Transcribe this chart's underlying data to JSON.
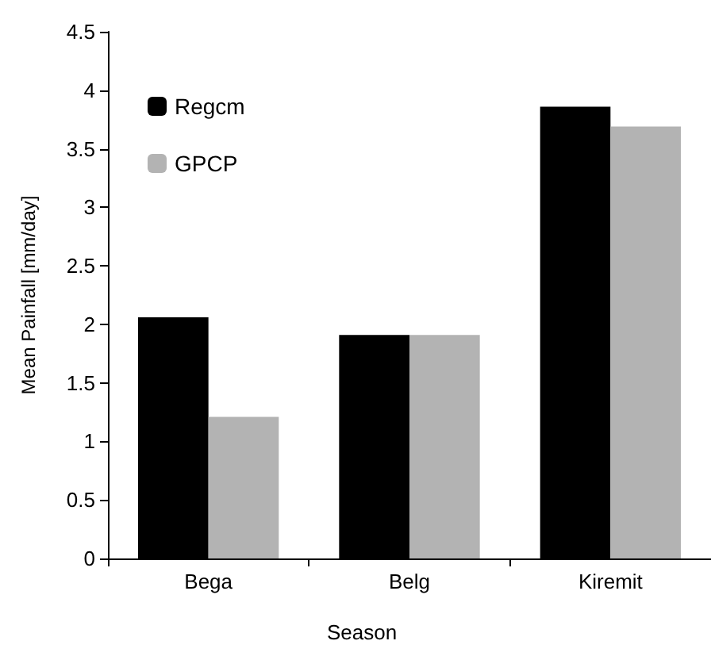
{
  "chart_data": {
    "type": "bar",
    "xlabel": "Season",
    "ylabel": "Mean Painfall [mm/day]",
    "categories": [
      "Bega",
      "Belg",
      "Kiremit"
    ],
    "series": [
      {
        "name": "Regcm",
        "color": "#000000",
        "values": [
          2.06,
          1.91,
          3.86
        ]
      },
      {
        "name": "GPCP",
        "color": "#b3b3b3",
        "values": [
          1.21,
          1.91,
          3.69
        ]
      }
    ],
    "ylim": [
      0,
      4.5
    ],
    "yticks": [
      0,
      0.5,
      1,
      1.5,
      2,
      2.5,
      3,
      3.5,
      4,
      4.5
    ],
    "grid": false,
    "legend": "top left"
  }
}
